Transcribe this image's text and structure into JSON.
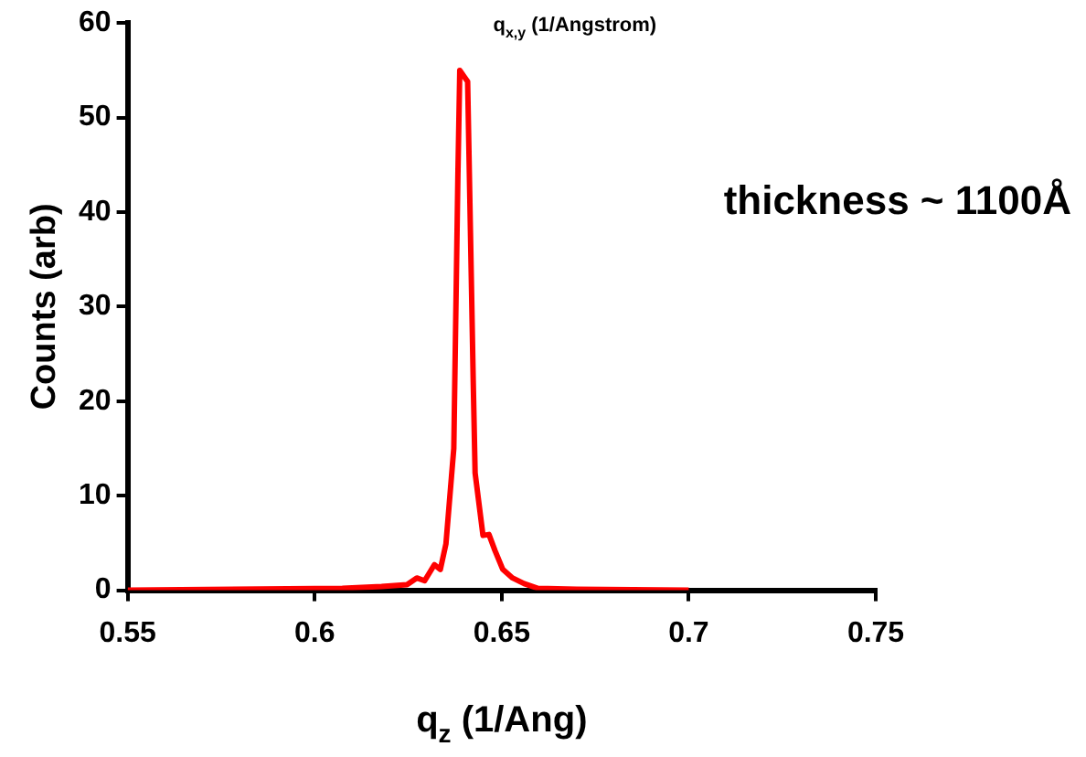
{
  "chart_data": {
    "type": "line",
    "xlabel": "q$_{z}$ (1/Ang)",
    "ylabel": "Counts (arb)",
    "annotations": [
      "q$_{x,y}$ (1/Angstrom)",
      "thickness ~ 1100Å"
    ],
    "xlim": [
      0.55,
      0.75
    ],
    "xticks": [
      0.55,
      0.6,
      0.65,
      0.7,
      0.75
    ],
    "ylim": [
      0,
      60
    ],
    "yticks": [
      0,
      10,
      20,
      30,
      40,
      50,
      60
    ],
    "grid": false,
    "legend": false,
    "marker": "none",
    "line_style": "solid",
    "series": [
      {
        "color": "#ff0000",
        "x": [
          0.55,
          0.6074,
          0.6179,
          0.6247,
          0.6273,
          0.6294,
          0.632,
          0.6336,
          0.6351,
          0.6372,
          0.6383,
          0.6388,
          0.6409,
          0.6424,
          0.6429,
          0.645,
          0.6466,
          0.6482,
          0.6503,
          0.6529,
          0.656,
          0.6597,
          0.6701,
          0.7
        ],
        "values": [
          0,
          0.2,
          0.4,
          0.6,
          1.3,
          1.0,
          2.7,
          2.2,
          4.9,
          15,
          44,
          55,
          53.8,
          22,
          12.4,
          5.8,
          5.9,
          4.2,
          2.2,
          1.3,
          0.7,
          0.2,
          0.1,
          0
        ]
      }
    ]
  }
}
